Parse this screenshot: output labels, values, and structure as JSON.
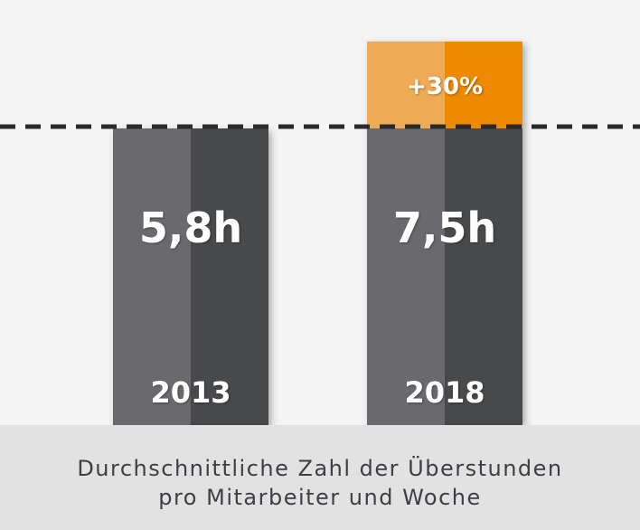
{
  "chart_data": {
    "type": "bar",
    "categories": [
      "2013",
      "2018"
    ],
    "values": [
      5.8,
      7.5
    ],
    "value_labels": [
      "5,8h",
      "7,5h"
    ],
    "unit": "h",
    "reference_line": {
      "value": 5.8,
      "style": "dashed"
    },
    "increase_label": "+30%",
    "title": "Durchschnittliche Zahl der Überstunden pro Mitarbeiter und Woche",
    "title_lines": [
      "Durchschnittliche Zahl der Überstunden",
      "pro Mitarbeiter und Woche"
    ],
    "colors": {
      "bar_light": "#6a6b6e",
      "bar_dark": "#46494c",
      "increase_light": "#eeaa55",
      "increase_dark": "#ef8a00",
      "reference_line": "#2a2a2a"
    },
    "grid": false,
    "legend": "none"
  }
}
